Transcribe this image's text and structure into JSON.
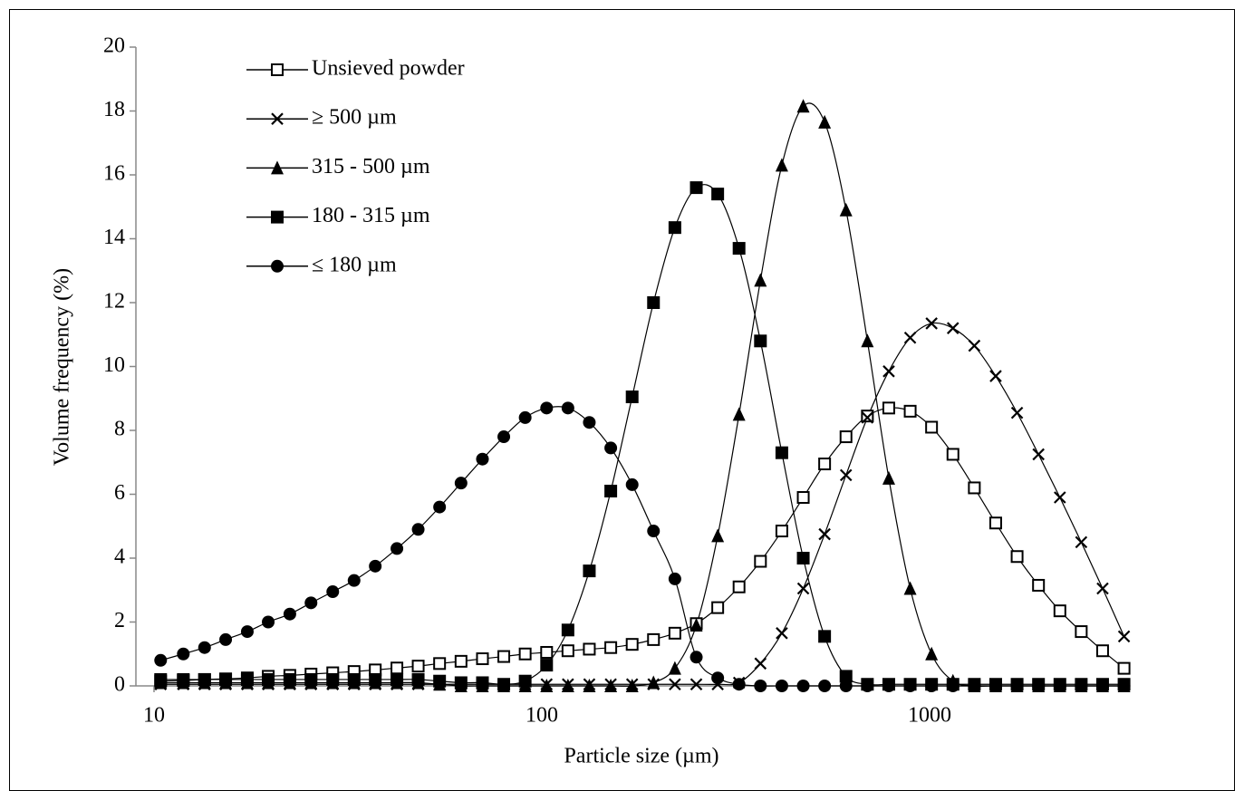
{
  "chart_data": {
    "type": "line",
    "x_label": "Particle size (µm)",
    "y_label": "Volume frequency (%)",
    "x_scale": "log",
    "xlim": [
      8.98,
      3249
    ],
    "xticks": [
      10,
      100,
      1000
    ],
    "ylim": [
      0,
      20
    ],
    "yticks": [
      0,
      2,
      4,
      6,
      8,
      10,
      12,
      14,
      16,
      18,
      20
    ],
    "grid": false,
    "legend": "upper left",
    "x": [
      10.4,
      11.9,
      13.5,
      15.3,
      17.4,
      19.7,
      22.4,
      25.4,
      28.9,
      32.8,
      37.2,
      42.3,
      48.0,
      54.5,
      61.9,
      70.3,
      79.8,
      90.6,
      102.9,
      116.8,
      132.6,
      150.6,
      171.0,
      194.1,
      220.4,
      250.3,
      284.2,
      322.6,
      366.3,
      415.9,
      472.3,
      536.2,
      608.8,
      691.3,
      784.9,
      891.2,
      1011.8,
      1148.8,
      1304.4,
      1481,
      1681.6,
      1909.3,
      2168,
      2461,
      2794,
      3173
    ],
    "series": [
      {
        "name": "Unsieved powder",
        "color": "#000000",
        "marker": "square-open",
        "values": [
          0.15,
          0.17,
          0.2,
          0.22,
          0.25,
          0.3,
          0.33,
          0.37,
          0.41,
          0.45,
          0.5,
          0.56,
          0.62,
          0.7,
          0.77,
          0.85,
          0.92,
          1.0,
          1.05,
          1.1,
          1.15,
          1.2,
          1.3,
          1.45,
          1.65,
          1.95,
          2.45,
          3.1,
          3.9,
          4.85,
          5.9,
          6.95,
          7.8,
          8.45,
          8.7,
          8.6,
          8.1,
          7.25,
          6.2,
          5.1,
          4.05,
          3.15,
          2.35,
          1.7,
          1.1,
          0.55
        ]
      },
      {
        "name": "≥ 500 µm",
        "color": "#000000",
        "marker": "x",
        "values": [
          0.05,
          0.05,
          0.05,
          0.05,
          0.05,
          0.05,
          0.05,
          0.05,
          0.05,
          0.05,
          0.05,
          0.05,
          0.05,
          0.05,
          0.05,
          0.05,
          0.05,
          0.05,
          0.05,
          0.05,
          0.05,
          0.05,
          0.05,
          0.05,
          0.05,
          0.05,
          0.05,
          0.1,
          0.7,
          1.65,
          3.05,
          4.75,
          6.6,
          8.4,
          9.85,
          10.9,
          11.35,
          11.2,
          10.65,
          9.7,
          8.55,
          7.25,
          5.9,
          4.5,
          3.05,
          1.55
        ]
      },
      {
        "name": "315 - 500 µm",
        "color": "#000000",
        "marker": "triangle",
        "values": [
          0.1,
          0.1,
          0.1,
          0.1,
          0.1,
          0.1,
          0.1,
          0.1,
          0.1,
          0.1,
          0.1,
          0.1,
          0.1,
          0.05,
          0.0,
          0.0,
          0.0,
          0.0,
          0.0,
          0.0,
          0.0,
          0.0,
          0.0,
          0.1,
          0.55,
          1.9,
          4.7,
          8.5,
          12.7,
          16.3,
          18.15,
          17.65,
          14.9,
          10.8,
          6.5,
          3.05,
          1.0,
          0.15,
          0.0,
          0.0,
          0.0,
          0.0,
          0.0,
          0.0,
          0.0,
          0.0
        ]
      },
      {
        "name": "180 - 315 µm",
        "color": "#000000",
        "marker": "square",
        "values": [
          0.2,
          0.2,
          0.2,
          0.2,
          0.2,
          0.2,
          0.2,
          0.2,
          0.2,
          0.2,
          0.2,
          0.2,
          0.2,
          0.15,
          0.1,
          0.1,
          0.05,
          0.15,
          0.65,
          1.75,
          3.6,
          6.1,
          9.05,
          12.0,
          14.35,
          15.6,
          15.4,
          13.7,
          10.8,
          7.3,
          4.0,
          1.55,
          0.3,
          0.05,
          0.05,
          0.05,
          0.05,
          0.05,
          0.05,
          0.05,
          0.05,
          0.05,
          0.05,
          0.05,
          0.05,
          0.05
        ]
      },
      {
        "name": "≤ 180 µm",
        "color": "#000000",
        "marker": "circle",
        "values": [
          0.8,
          1.0,
          1.2,
          1.45,
          1.7,
          2.0,
          2.25,
          2.6,
          2.95,
          3.3,
          3.75,
          4.3,
          4.9,
          5.6,
          6.35,
          7.1,
          7.8,
          8.4,
          8.7,
          8.7,
          8.25,
          7.45,
          6.3,
          4.85,
          3.35,
          0.9,
          0.25,
          0.05,
          0.0,
          0.0,
          0.0,
          0.0,
          0.0,
          0.0,
          0.0,
          0.0,
          0.0,
          0.0,
          0.0,
          0.0,
          0.0,
          0.0,
          0.0,
          0.0,
          0.0,
          0.0
        ]
      }
    ]
  }
}
